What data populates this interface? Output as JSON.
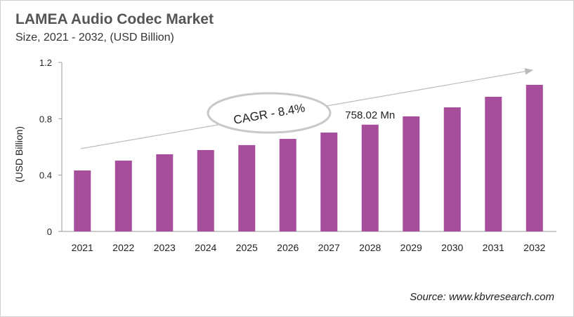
{
  "chart_data": {
    "type": "bar",
    "title": "LAMEA Audio Codec Market",
    "subtitle": "Size, 2021 - 2032, (USD Billion)",
    "xlabel": "",
    "ylabel": "(USD Billion)",
    "categories": [
      "2021",
      "2022",
      "2023",
      "2024",
      "2025",
      "2026",
      "2027",
      "2028",
      "2029",
      "2030",
      "2031",
      "2032"
    ],
    "values": [
      0.433,
      0.503,
      0.548,
      0.578,
      0.613,
      0.657,
      0.702,
      0.758,
      0.817,
      0.881,
      0.956,
      1.041
    ],
    "ylim": [
      0,
      1.2
    ],
    "yticks": [
      "0",
      "0.4",
      "0.8",
      "1.2"
    ],
    "grid": false,
    "bar_color": "#A64D9B",
    "annotations": {
      "cagr": "CAGR - 8.4%",
      "data_label": "758.02 Mn",
      "data_label_category": "2028"
    },
    "source": "Source: www.kbvresearch.com"
  }
}
